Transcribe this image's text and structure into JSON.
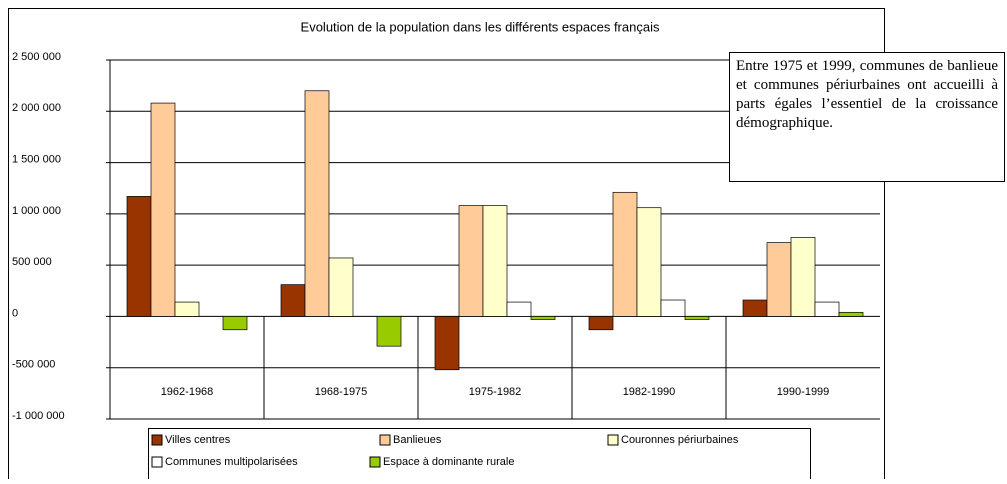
{
  "chart_data": {
    "type": "bar",
    "title": "Evolution de la population dans les différents espaces français",
    "annotation": "Entre 1975 et 1999, communes de banlieue et communes périurbaines ont accueilli à parts égales l’essentiel de la croissance démographique.",
    "categories": [
      "1962-1968",
      "1968-1975",
      "1975-1982",
      "1982-1990",
      "1990-1999"
    ],
    "series": [
      {
        "name": "Villes centres",
        "color": "#993300",
        "values": [
          1170000,
          310000,
          -520000,
          -130000,
          160000
        ]
      },
      {
        "name": "Banlieues",
        "color": "#ffcc99",
        "values": [
          2080000,
          2200000,
          1080000,
          1210000,
          720000
        ]
      },
      {
        "name": "Couronnes périurbaines",
        "color": "#ffffcc",
        "values": [
          140000,
          570000,
          1080000,
          1060000,
          770000
        ]
      },
      {
        "name": "Communes multipolarisées",
        "color": "#ffffff",
        "values": [
          0,
          0,
          140000,
          160000,
          140000
        ]
      },
      {
        "name": "Espace à dominante rurale",
        "color": "#99cc00",
        "values": [
          -130000,
          -290000,
          -30000,
          -30000,
          40000
        ]
      }
    ],
    "ylim": [
      -1000000,
      2500000
    ],
    "yticks": [
      {
        "value": -1000000,
        "label": "-1 000 000"
      },
      {
        "value": -500000,
        "label": "-500 000"
      },
      0,
      {
        "value": 500000,
        "label": "500 000"
      },
      {
        "value": 1000000,
        "label": "1 000 000"
      },
      {
        "value": 1500000,
        "label": "1 500 000"
      },
      {
        "value": 2000000,
        "label": "2 000 000"
      },
      {
        "value": 2500000,
        "label": "2 500 000"
      }
    ],
    "grid": true
  }
}
